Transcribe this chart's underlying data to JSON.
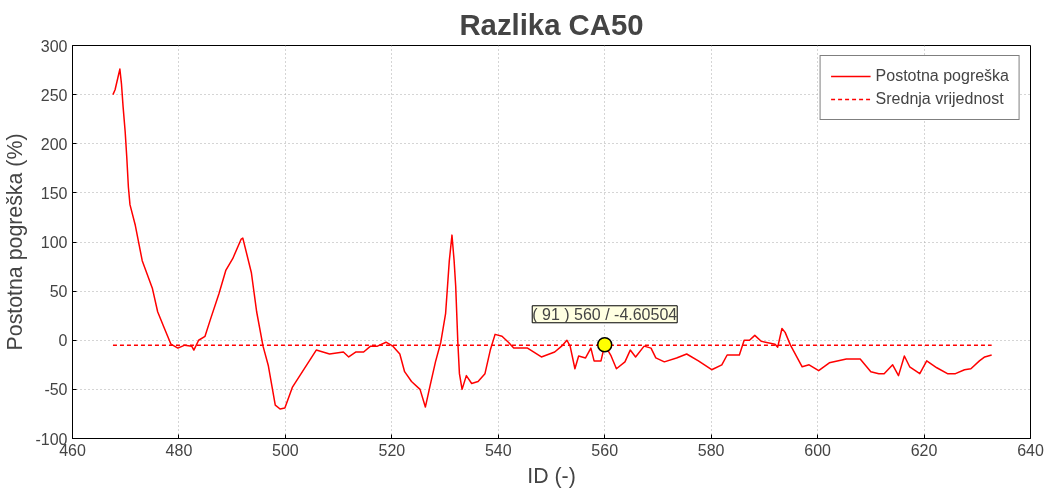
{
  "chart_data": {
    "type": "line",
    "title": "Razlika CA50",
    "xlabel": "ID (-)",
    "ylabel": "Postotna pogreška (%)",
    "xlim": [
      460,
      640
    ],
    "xticks": [
      460,
      480,
      500,
      520,
      540,
      560,
      580,
      600,
      620,
      640
    ],
    "ylim": [
      -100,
      300
    ],
    "yticks": [
      -100,
      -50,
      0,
      50,
      100,
      150,
      200,
      250,
      300
    ],
    "grid": true,
    "legend": "top right",
    "line_style": "solid",
    "series": [
      {
        "name": "Postotna pogreška",
        "color": "#ff0000",
        "x": [
          467.6,
          468,
          468.6,
          468.9,
          469.2,
          469.5,
          469.9,
          470.2,
          470.5,
          470.8,
          471.8,
          473.1,
          475,
          476,
          477.2,
          478.5,
          479.8,
          481.1,
          482.4,
          482.8,
          483.7,
          484.9,
          485.9,
          487.5,
          488.8,
          490.1,
          491.7,
          492,
          493.6,
          494.6,
          495.8,
          496.8,
          498.1,
          499,
          499.9,
          501.3,
          503.2,
          505.8,
          508.3,
          510.9,
          511.9,
          513.2,
          514.7,
          516,
          517.3,
          518.9,
          520.2,
          521.5,
          522.4,
          523.7,
          525.3,
          526.3,
          527.2,
          528.2,
          529.2,
          530.1,
          530.8,
          531.3,
          531.7,
          532,
          532.4,
          532.7,
          533.2,
          534,
          535,
          536.2,
          537.5,
          538.5,
          539.4,
          540.7,
          541.9,
          542.9,
          545.5,
          548.1,
          550.6,
          551.9,
          552.9,
          553.5,
          554.4,
          555.1,
          556.4,
          557.4,
          558,
          559.3,
          560,
          561.2,
          562.2,
          563.8,
          564.8,
          565.8,
          567.4,
          568.7,
          569.6,
          571.2,
          573.5,
          575.4,
          577.6,
          580.1,
          582,
          583,
          585.3,
          586.2,
          587.2,
          588.2,
          589.4,
          592,
          592.5,
          593.3,
          593.9,
          594.9,
          597.1,
          598.4,
          600.2,
          602.2,
          605.4,
          608,
          610,
          611.5,
          612.5,
          614.1,
          615.2,
          616.3,
          617.3,
          619.2,
          620.5,
          622.4,
          624.4,
          625.9,
          627.6,
          628.8,
          630.4,
          631.4,
          632.7
        ],
        "values": [
          250,
          255,
          269,
          276,
          261,
          238,
          212,
          186,
          156,
          138,
          117,
          81,
          53,
          29,
          13,
          -4,
          -8,
          -5,
          -6,
          -10,
          0,
          4,
          21,
          47,
          71,
          83,
          103,
          104,
          69,
          29,
          -6,
          -26,
          -66,
          -70,
          -69,
          -48,
          -32,
          -10,
          -14,
          -12,
          -17,
          -12,
          -12,
          -6,
          -6,
          -2,
          -6,
          -14,
          -32,
          -42,
          -50,
          -68,
          -46,
          -22,
          -2,
          27,
          81,
          107,
          81,
          55,
          -2,
          -34,
          -50,
          -36,
          -44,
          -42,
          -34,
          -10,
          6,
          4,
          -2,
          -8,
          -8,
          -17,
          -12,
          -6,
          0,
          -6,
          -29,
          -16,
          -18,
          -8,
          -21,
          -21,
          -4.60504,
          -16,
          -29,
          -22,
          -10,
          -17,
          -6,
          -8,
          -18,
          -22,
          -18,
          -14,
          -21,
          -30,
          -25,
          -15,
          -15,
          0,
          0,
          5,
          -1,
          -4,
          -7,
          12,
          8,
          -5,
          -27,
          -25,
          -31,
          -23,
          -19,
          -19,
          -32,
          -34,
          -34,
          -25,
          -36,
          -16,
          -27,
          -34,
          -21,
          -28,
          -34,
          -34,
          -30,
          -29,
          -21,
          -17,
          -15
        ]
      }
    ],
    "ref_lines": [
      {
        "axis": "y",
        "value": -5,
        "label": "Srednja vrijednost",
        "color": "#ff0000",
        "line_style": "dashed"
      }
    ],
    "annotations": [
      {
        "text": "( 91 ) 560 / -4.60504",
        "x": 560,
        "y": -4.60504
      }
    ]
  }
}
